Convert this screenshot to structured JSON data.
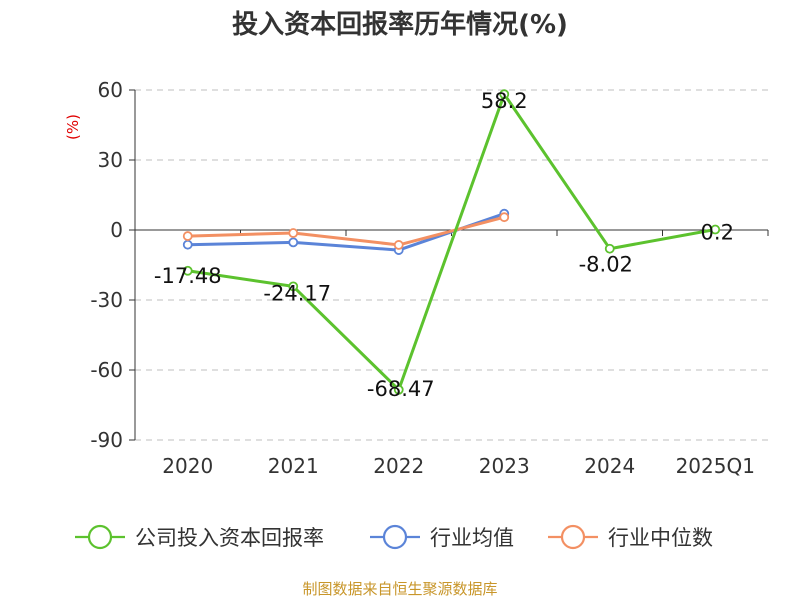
{
  "chart_data": {
    "type": "line",
    "title": "投入资本回报率历年情况(%)",
    "ylabel": "(%)",
    "categories": [
      "2020",
      "2021",
      "2022",
      "2023",
      "2024",
      "2025Q1"
    ],
    "yticks": [
      60,
      30,
      0,
      -30,
      -60,
      -90
    ],
    "ylim": [
      -90,
      60
    ],
    "grid": true,
    "legend_position": "bottom",
    "series": [
      {
        "name": "公司投入资本回报率",
        "color": "#5cc22e",
        "values": [
          -17.48,
          -24.17,
          -68.47,
          58.2,
          -8.02,
          0.2
        ],
        "labels": [
          "-17.48",
          "-24.17",
          "-68.47",
          "58.2",
          "-8.02",
          "0.2"
        ]
      },
      {
        "name": "行业均值",
        "color": "#5b84d8",
        "values": [
          -6.3,
          -5.3,
          -8.6,
          7.0,
          null,
          null
        ]
      },
      {
        "name": "行业中位数",
        "color": "#f39063",
        "values": [
          -2.6,
          -1.3,
          -6.4,
          5.5,
          null,
          null
        ]
      }
    ],
    "source": "制图数据来自恒生聚源数据库"
  }
}
